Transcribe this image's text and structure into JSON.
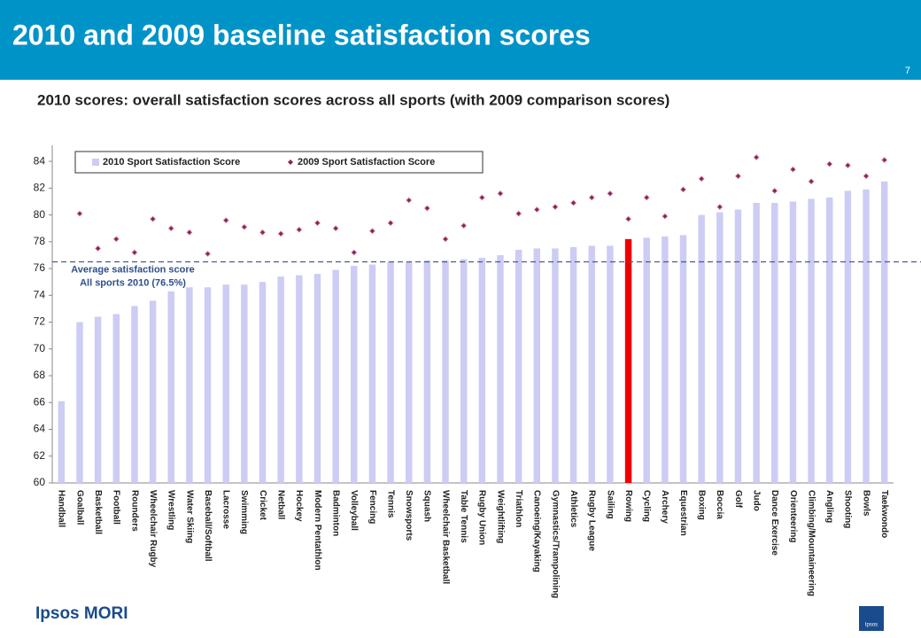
{
  "header": {
    "title": "2010 and 2009 baseline satisfaction scores",
    "page_number": "7"
  },
  "footer": {
    "logo": "Ipsos MORI",
    "badge": "Ipsos"
  },
  "chart_data": {
    "type": "bar",
    "title": "2010 scores: overall satisfaction scores across all sports (with 2009 comparison scores)",
    "categories": [
      "Handball",
      "Goalball",
      "Basketball",
      "Football",
      "Rounders",
      "Wheelchair Rugby",
      "Wrestling",
      "Water Skiing",
      "Baseball/Softball",
      "Lacrosse",
      "Swimming",
      "Cricket",
      "Netball",
      "Hockey",
      "Modern Pentathlon",
      "Badminton",
      "Volleyball",
      "Fencing",
      "Tennis",
      "Snowsports",
      "Squash",
      "Wheelchair Basketball",
      "Table Tennis",
      "Rugby Union",
      "Weightlifting",
      "Triathlon",
      "Canoeing/Kayaking",
      "Gymnastics/Trampolining",
      "Athletics",
      "Rugby League",
      "Sailing",
      "Rowing",
      "Cycling",
      "Archery",
      "Equestrian",
      "Boxing",
      "Boccia",
      "Golf",
      "Judo",
      "Dance Exercise",
      "Orienteering",
      "Climbing/Mountaineering",
      "Angling",
      "Shooting",
      "Bowls",
      "Taekwondo"
    ],
    "series": [
      {
        "name": "2010 Sport Satisfaction Score",
        "type": "bar",
        "color": "#ccccf5",
        "colors": [
          "#ccccf5",
          "#ccccf5",
          "#ccccf5",
          "#ccccf5",
          "#ccccf5",
          "#ccccf5",
          "#ccccf5",
          "#ccccf5",
          "#ccccf5",
          "#ccccf5",
          "#ccccf5",
          "#ccccf5",
          "#ccccf5",
          "#ccccf5",
          "#ccccf5",
          "#ccccf5",
          "#ccccf5",
          "#ccccf5",
          "#ccccf5",
          "#ccccf5",
          "#ccccf5",
          "#ccccf5",
          "#ccccf5",
          "#ccccf5",
          "#ccccf5",
          "#ccccf5",
          "#ccccf5",
          "#ccccf5",
          "#ccccf5",
          "#ccccf5",
          "#ccccf5",
          "#ee0000",
          "#ccccf5",
          "#ccccf5",
          "#ccccf5",
          "#ccccf5",
          "#ccccf5",
          "#ccccf5",
          "#ccccf5",
          "#ccccf5",
          "#ccccf5",
          "#ccccf5",
          "#ccccf5",
          "#ccccf5",
          "#ccccf5",
          "#ccccf5"
        ],
        "values": [
          66.1,
          72.0,
          72.4,
          72.6,
          73.2,
          73.6,
          74.3,
          74.6,
          74.6,
          74.8,
          74.8,
          75.0,
          75.4,
          75.5,
          75.6,
          75.9,
          76.2,
          76.3,
          76.5,
          76.5,
          76.6,
          76.6,
          76.7,
          76.8,
          77.0,
          77.4,
          77.5,
          77.5,
          77.6,
          77.7,
          77.7,
          78.2,
          78.3,
          78.4,
          78.5,
          80.0,
          80.2,
          80.4,
          80.9,
          80.9,
          81.0,
          81.2,
          81.3,
          81.8,
          81.9,
          82.5
        ]
      },
      {
        "name": "2009 Sport Satisfaction Score",
        "type": "dot",
        "color": "#8b2252",
        "values": [
          null,
          80.1,
          77.5,
          78.2,
          77.2,
          79.7,
          79.0,
          78.7,
          77.1,
          79.6,
          79.1,
          78.7,
          78.6,
          78.9,
          79.4,
          79.0,
          77.2,
          78.8,
          79.4,
          81.1,
          80.5,
          78.2,
          79.2,
          81.3,
          81.6,
          80.1,
          80.4,
          80.6,
          80.9,
          81.3,
          81.6,
          79.7,
          81.3,
          79.9,
          81.9,
          82.7,
          80.6,
          82.9,
          84.3,
          81.8,
          83.4,
          82.5,
          83.8,
          83.7,
          82.9,
          84.1
        ]
      }
    ],
    "reference_line": {
      "value": 76.5,
      "color": "#4a5a8a",
      "label": [
        "Average satisfaction score",
        "All sports 2010 (76.5%)"
      ]
    },
    "ylim": [
      60,
      84.8
    ],
    "yticks": [
      60,
      62,
      64,
      66,
      68,
      70,
      72,
      74,
      76,
      78,
      80,
      82,
      84
    ],
    "grid": false,
    "legend": "top"
  }
}
